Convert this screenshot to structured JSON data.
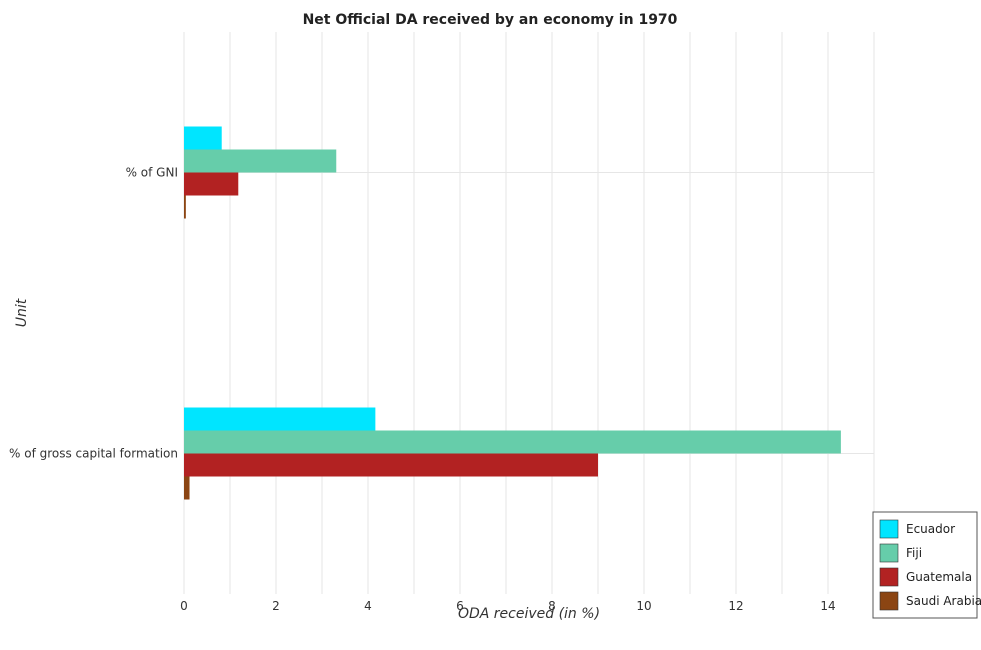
{
  "chart_data": {
    "type": "bar",
    "orientation": "horizontal",
    "title": "Net Official DA received by an economy in 1970",
    "xlabel": "ODA received (in %)",
    "ylabel": "Unit",
    "categories": [
      "% of GNI",
      "% of gross capital formation"
    ],
    "xlim": [
      0,
      15
    ],
    "xticks": [
      "0",
      "2",
      "4",
      "6",
      "8",
      "10",
      "12",
      "14"
    ],
    "grid": true,
    "legend_position": "bottom-right",
    "series": [
      {
        "name": "Ecuador",
        "color": "#00e5ff",
        "values": [
          0.82,
          4.16
        ]
      },
      {
        "name": "Fiji",
        "color": "#66cdaa",
        "values": [
          3.31,
          14.28
        ]
      },
      {
        "name": "Guatemala",
        "color": "#b22222",
        "values": [
          1.18,
          9.0
        ]
      },
      {
        "name": "Saudi Arabia",
        "color": "#8b4513",
        "values": [
          0.04,
          0.12
        ]
      }
    ]
  }
}
